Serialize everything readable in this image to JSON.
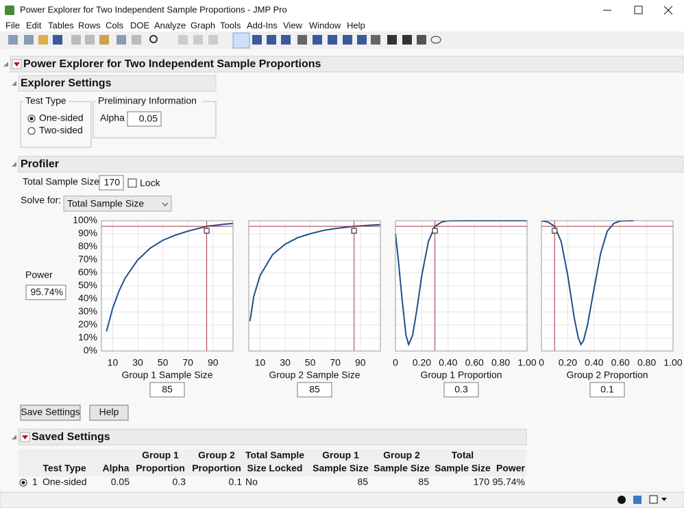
{
  "window": {
    "title": "Power Explorer for Two Independent Sample Proportions - JMP Pro"
  },
  "menu": [
    "File",
    "Edit",
    "Tables",
    "Rows",
    "Cols",
    "DOE",
    "Analyze",
    "Graph",
    "Tools",
    "Add-Ins",
    "View",
    "Window",
    "Help"
  ],
  "report": {
    "title": "Power Explorer for Two Independent Sample Proportions"
  },
  "explorer_settings": {
    "title": "Explorer Settings",
    "test_type": {
      "label": "Test Type",
      "options": [
        "One-sided",
        "Two-sided"
      ],
      "selected": "One-sided"
    },
    "preliminary": {
      "label": "Preliminary Information",
      "alpha_label": "Alpha",
      "alpha": "0.05"
    }
  },
  "profiler": {
    "title": "Profiler",
    "total_sample_size_label": "Total Sample Size",
    "total_sample_size": "170",
    "lock_label": "Lock",
    "solve_for_label": "Solve for:",
    "solve_for": "Total Sample Size",
    "power_label": "Power",
    "power": {
      "value": 95.74,
      "label": "95.74%"
    }
  },
  "chart_data": [
    {
      "type": "line",
      "xlabel": "Group 1 Sample Size",
      "color": "#1b4f8c",
      "x": [
        5,
        10,
        15,
        20,
        30,
        40,
        50,
        60,
        70,
        85,
        100,
        106
      ],
      "values": [
        15,
        33,
        46,
        56,
        70,
        79,
        85,
        89,
        92,
        95.74,
        97.4,
        97.9
      ],
      "current": 85,
      "xlim": [
        1,
        106
      ],
      "xticks": [
        10,
        30,
        50,
        70,
        90
      ],
      "ylim": [
        0,
        100
      ],
      "yticks": [
        {
          "value": 0,
          "label": "0%"
        },
        {
          "value": 10,
          "label": "10%"
        },
        {
          "value": 20,
          "label": "20%"
        },
        {
          "value": 30,
          "label": "30%"
        },
        {
          "value": 40,
          "label": "40%"
        },
        {
          "value": 50,
          "label": "50%"
        },
        {
          "value": 60,
          "label": "60%"
        },
        {
          "value": 70,
          "label": "70%"
        },
        {
          "value": 80,
          "label": "80%"
        },
        {
          "value": 90,
          "label": "90%"
        },
        {
          "value": 100,
          "label": "100%"
        }
      ]
    },
    {
      "type": "line",
      "xlabel": "Group 2 Sample Size",
      "color": "#1b4f8c",
      "x": [
        2,
        5,
        10,
        20,
        30,
        40,
        50,
        60,
        70,
        85,
        100,
        106
      ],
      "values": [
        23,
        42,
        58,
        74,
        82,
        87,
        90,
        92.5,
        94,
        95.74,
        96.7,
        97
      ],
      "current": 85,
      "xlim": [
        1,
        106
      ],
      "xticks": [
        10,
        30,
        50,
        70,
        90
      ],
      "ylim": [
        0,
        100
      ]
    },
    {
      "type": "line",
      "xlabel": "Group 1 Proportion",
      "color": "#1b4f8c",
      "x": [
        0,
        0.02,
        0.05,
        0.08,
        0.1,
        0.13,
        0.16,
        0.2,
        0.25,
        0.3,
        0.35,
        0.4,
        0.5,
        0.6,
        0.8,
        1
      ],
      "values": [
        90,
        72,
        40,
        12,
        5,
        12,
        30,
        58,
        84,
        95.74,
        99,
        99.9,
        100,
        100,
        100,
        100
      ],
      "current": 0.3,
      "xlim": [
        0,
        1
      ],
      "xticks": [
        0,
        {
          "value": 0.2,
          "label": "0.20"
        },
        {
          "value": 0.4,
          "label": "0.40"
        },
        {
          "value": 0.6,
          "label": "0.60"
        },
        {
          "value": 0.8,
          "label": "0.80"
        },
        {
          "value": 1,
          "label": "1.00"
        }
      ],
      "ylim": [
        0,
        100
      ]
    },
    {
      "type": "line",
      "xlabel": "Group 2 Proportion",
      "color": "#1b4f8c",
      "x": [
        0,
        0.05,
        0.1,
        0.15,
        0.2,
        0.25,
        0.28,
        0.3,
        0.32,
        0.35,
        0.4,
        0.45,
        0.5,
        0.55,
        0.6,
        0.7
      ],
      "values": [
        99.9,
        99,
        95.74,
        84,
        58,
        25,
        10,
        5,
        8,
        20,
        48,
        75,
        92,
        98,
        99.8,
        100
      ],
      "current": 0.1,
      "xlim": [
        0,
        1
      ],
      "xticks": [
        0,
        {
          "value": 0.2,
          "label": "0.20"
        },
        {
          "value": 0.4,
          "label": "0.40"
        },
        {
          "value": 0.6,
          "label": "0.60"
        },
        {
          "value": 0.8,
          "label": "0.80"
        },
        {
          "value": 1,
          "label": "1.00"
        }
      ],
      "ylim": [
        0,
        100
      ]
    }
  ],
  "buttons": [
    "Save Settings",
    "Help"
  ],
  "saved_settings": {
    "title": "Saved Settings",
    "headers": [
      [
        "Test Type"
      ],
      [
        "Alpha"
      ],
      [
        "Group 1",
        "Proportion"
      ],
      [
        "Group 2",
        "Proportion"
      ],
      [
        "Total Sample",
        "Size Locked"
      ],
      [
        "Group 1",
        "Sample Size"
      ],
      [
        "Group 2",
        "Sample Size"
      ],
      [
        "Total",
        "Sample Size"
      ],
      [
        "Power"
      ]
    ],
    "rows": [
      [
        "1",
        "One-sided",
        "0.05",
        "0.3",
        "0.1",
        "No",
        "85",
        "85",
        "170",
        "95.74%"
      ]
    ]
  }
}
